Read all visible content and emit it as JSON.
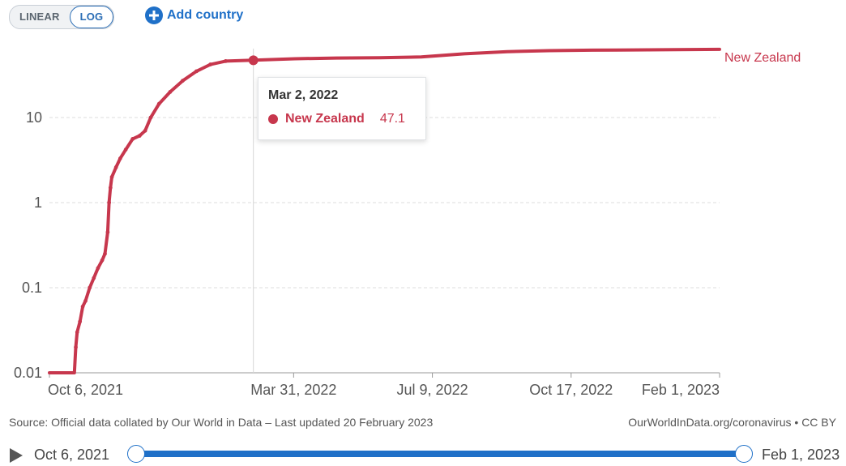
{
  "controls": {
    "linear_label": "LINEAR",
    "log_label": "LOG",
    "active_scale": "log",
    "add_country_label": "Add country"
  },
  "tooltip": {
    "date": "Mar 2, 2022",
    "series": "New Zealand",
    "value": "47.1"
  },
  "footer": {
    "source": "Source: Official data collated by Our World in Data – Last updated 20 February 2023",
    "credit": "OurWorldInData.org/coronavirus • CC BY"
  },
  "timeline": {
    "start_label": "Oct 6, 2021",
    "end_label": "Feb 1, 2023",
    "start_fraction": 0,
    "end_fraction": 1
  },
  "colors": {
    "series": "#c7374d",
    "accent": "#1f70c8"
  },
  "chart_data": {
    "type": "line",
    "yscale": "log",
    "ylim": [
      0.01,
      100
    ],
    "xlim": [
      "2021-10-06",
      "2023-02-01"
    ],
    "yticks": [
      0.01,
      0.1,
      1,
      10
    ],
    "ytick_labels": [
      "0.01",
      "0.1",
      "1",
      "10"
    ],
    "xticks": [
      "2021-10-06",
      "2022-03-31",
      "2022-07-09",
      "2022-10-17",
      "2023-02-01"
    ],
    "xtick_labels": [
      "Oct 6, 2021",
      "Mar 31, 2022",
      "Jul 9, 2022",
      "Oct 17, 2022",
      "Feb 1, 2023"
    ],
    "grid": true,
    "highlight": {
      "x": "2022-03-02",
      "y": 47.1
    },
    "series": [
      {
        "name": "New Zealand",
        "points": [
          [
            "2021-10-06",
            0.01
          ],
          [
            "2021-10-24",
            0.01
          ],
          [
            "2021-10-25",
            0.02
          ],
          [
            "2021-10-26",
            0.03
          ],
          [
            "2021-10-28",
            0.04
          ],
          [
            "2021-10-30",
            0.06
          ],
          [
            "2021-11-01",
            0.07
          ],
          [
            "2021-11-04",
            0.1
          ],
          [
            "2021-11-07",
            0.13
          ],
          [
            "2021-11-10",
            0.17
          ],
          [
            "2021-11-13",
            0.21
          ],
          [
            "2021-11-15",
            0.25
          ],
          [
            "2021-11-17",
            0.45
          ],
          [
            "2021-11-18",
            1.0
          ],
          [
            "2021-11-19",
            1.5
          ],
          [
            "2021-11-20",
            2.0
          ],
          [
            "2021-11-23",
            2.6
          ],
          [
            "2021-11-26",
            3.3
          ],
          [
            "2021-11-30",
            4.2
          ],
          [
            "2021-12-05",
            5.6
          ],
          [
            "2021-12-10",
            6.1
          ],
          [
            "2021-12-14",
            7.0
          ],
          [
            "2021-12-18",
            10.0
          ],
          [
            "2021-12-24",
            14.5
          ],
          [
            "2022-01-01",
            20.0
          ],
          [
            "2022-01-10",
            27.0
          ],
          [
            "2022-01-20",
            35.0
          ],
          [
            "2022-01-30",
            42.0
          ],
          [
            "2022-02-10",
            46.0
          ],
          [
            "2022-03-02",
            47.1
          ],
          [
            "2022-04-01",
            49.0
          ],
          [
            "2022-05-01",
            50.0
          ],
          [
            "2022-06-01",
            50.5
          ],
          [
            "2022-07-01",
            51.5
          ],
          [
            "2022-08-01",
            56.0
          ],
          [
            "2022-09-01",
            59.5
          ],
          [
            "2022-10-01",
            61.0
          ],
          [
            "2022-11-01",
            61.8
          ],
          [
            "2022-12-01",
            62.3
          ],
          [
            "2023-01-01",
            62.8
          ],
          [
            "2023-02-01",
            63.2
          ]
        ]
      }
    ]
  }
}
